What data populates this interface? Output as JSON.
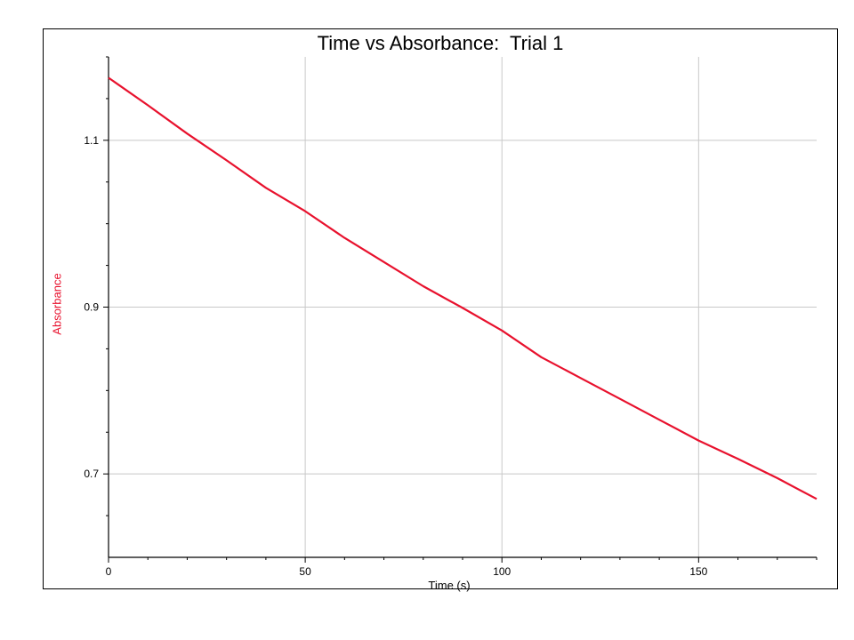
{
  "chart_data": {
    "type": "line",
    "title": "Time vs Absorbance:  Trial 1",
    "xlabel": "Time (s)",
    "ylabel": "Absorbance",
    "xlim": [
      0,
      180
    ],
    "ylim": [
      0.6,
      1.2
    ],
    "x_ticks": [
      0,
      50,
      100,
      150
    ],
    "x_tick_labels": [
      "0",
      "50",
      "100",
      "150"
    ],
    "y_ticks": [
      0.7,
      0.9,
      1.1
    ],
    "y_tick_labels": [
      "0.7",
      "0.9",
      "1.1"
    ],
    "grid": true,
    "series_color": "#e8112d",
    "series": [
      {
        "x": [
          0,
          10,
          20,
          30,
          40,
          50,
          60,
          70,
          80,
          90,
          100,
          110,
          120,
          130,
          140,
          150,
          160,
          170,
          180
        ],
        "y": [
          1.175,
          1.142,
          1.108,
          1.076,
          1.043,
          1.015,
          0.983,
          0.954,
          0.925,
          0.899,
          0.872,
          0.84,
          0.815,
          0.79,
          0.765,
          0.74,
          0.718,
          0.695,
          0.67
        ]
      }
    ]
  }
}
